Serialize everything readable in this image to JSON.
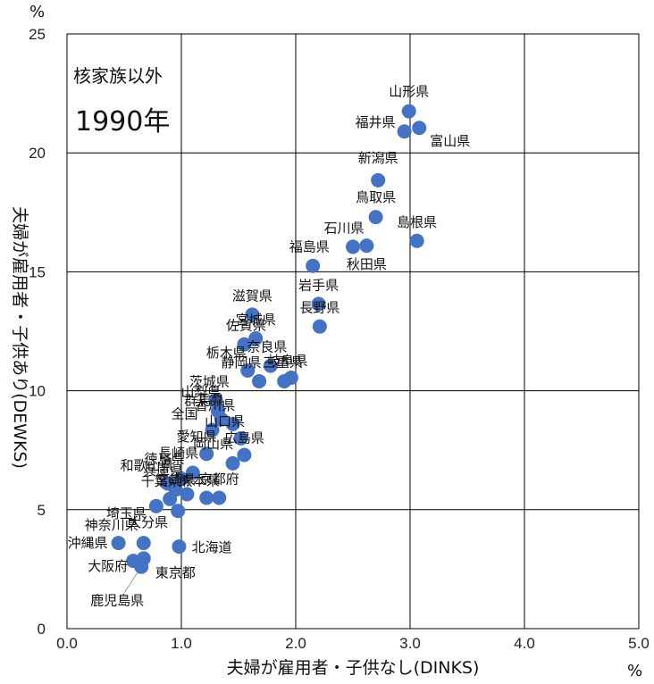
{
  "chart_data": {
    "type": "scatter",
    "annotations": [
      "核家族以外",
      "1990年"
    ],
    "xlabel": "夫婦が雇用者・子供なし(DINKS)",
    "ylabel": "夫婦が雇用者・子供あり(DEWKS)",
    "x_unit": "%",
    "y_unit": "%",
    "xlim": [
      0,
      5
    ],
    "ylim": [
      0,
      25
    ],
    "x_ticks": [
      "0.0",
      "1.0",
      "2.0",
      "3.0",
      "4.0",
      "5.0"
    ],
    "y_ticks": [
      "0",
      "5",
      "10",
      "15",
      "20",
      "25"
    ],
    "grid": true,
    "marker_color": "#4472c4",
    "points": [
      {
        "label": "山形県",
        "x": 2.99,
        "y": 21.75
      },
      {
        "label": "福井県",
        "x": 2.95,
        "y": 20.9
      },
      {
        "label": "富山県",
        "x": 3.08,
        "y": 21.05
      },
      {
        "label": "新潟県",
        "x": 2.72,
        "y": 18.85
      },
      {
        "label": "鳥取県",
        "x": 2.7,
        "y": 17.3
      },
      {
        "label": "島根県",
        "x": 3.06,
        "y": 16.3
      },
      {
        "label": "石川県",
        "x": 2.5,
        "y": 16.05
      },
      {
        "label": "秋田県",
        "x": 2.62,
        "y": 16.1
      },
      {
        "label": "福島県",
        "x": 2.15,
        "y": 15.25
      },
      {
        "label": "岩手県",
        "x": 2.2,
        "y": 13.65
      },
      {
        "label": "長野県",
        "x": 2.21,
        "y": 12.7
      },
      {
        "label": "滋賀県",
        "x": 1.62,
        "y": 13.2
      },
      {
        "label": "宮城県",
        "x": 1.65,
        "y": 12.2
      },
      {
        "label": "佐賀県",
        "x": 1.55,
        "y": 11.95
      },
      {
        "label": "栃木県",
        "x": 1.58,
        "y": 10.85
      },
      {
        "label": "静岡県",
        "x": 1.68,
        "y": 10.4
      },
      {
        "label": "奈良県",
        "x": 1.78,
        "y": 11.05
      },
      {
        "label": "三重県",
        "x": 1.9,
        "y": 10.4
      },
      {
        "label": "岐阜県",
        "x": 1.96,
        "y": 10.55
      },
      {
        "label": "茨城県",
        "x": 1.3,
        "y": 9.6
      },
      {
        "label": "山梨県",
        "x": 1.32,
        "y": 9.15
      },
      {
        "label": "群馬県",
        "x": 1.35,
        "y": 8.8
      },
      {
        "label": "香川県",
        "x": 1.45,
        "y": 8.6
      },
      {
        "label": "全国",
        "x": 1.27,
        "y": 8.35
      },
      {
        "label": "山口県",
        "x": 1.52,
        "y": 8.0
      },
      {
        "label": "愛知県",
        "x": 1.22,
        "y": 7.35
      },
      {
        "label": "広島県",
        "x": 1.55,
        "y": 7.3
      },
      {
        "label": "岡山県",
        "x": 1.45,
        "y": 6.95
      },
      {
        "label": "長崎県",
        "x": 1.1,
        "y": 6.55
      },
      {
        "label": "徳島県",
        "x": 1.0,
        "y": 6.3
      },
      {
        "label": "和歌山県",
        "x": 0.88,
        "y": 6.1
      },
      {
        "label": "兵庫県",
        "x": 0.95,
        "y": 5.85
      },
      {
        "label": "宮崎県",
        "x": 1.05,
        "y": 5.65
      },
      {
        "label": "京都府",
        "x": 1.33,
        "y": 5.5
      },
      {
        "label": "熊本県",
        "x": 1.22,
        "y": 5.5
      },
      {
        "label": "千葉県",
        "x": 0.9,
        "y": 5.45
      },
      {
        "label": "埼玉県",
        "x": 0.78,
        "y": 5.15
      },
      {
        "label": "大分県",
        "x": 0.97,
        "y": 4.95
      },
      {
        "label": "神奈川県",
        "x": 0.67,
        "y": 3.6
      },
      {
        "label": "沖縄県",
        "x": 0.45,
        "y": 3.6
      },
      {
        "label": "北海道",
        "x": 0.98,
        "y": 3.45
      },
      {
        "label": "東京都",
        "x": 0.67,
        "y": 2.95
      },
      {
        "label": "大阪府",
        "x": 0.58,
        "y": 2.85
      },
      {
        "label": "鹿児島県",
        "x": 0.65,
        "y": 2.6
      }
    ]
  }
}
